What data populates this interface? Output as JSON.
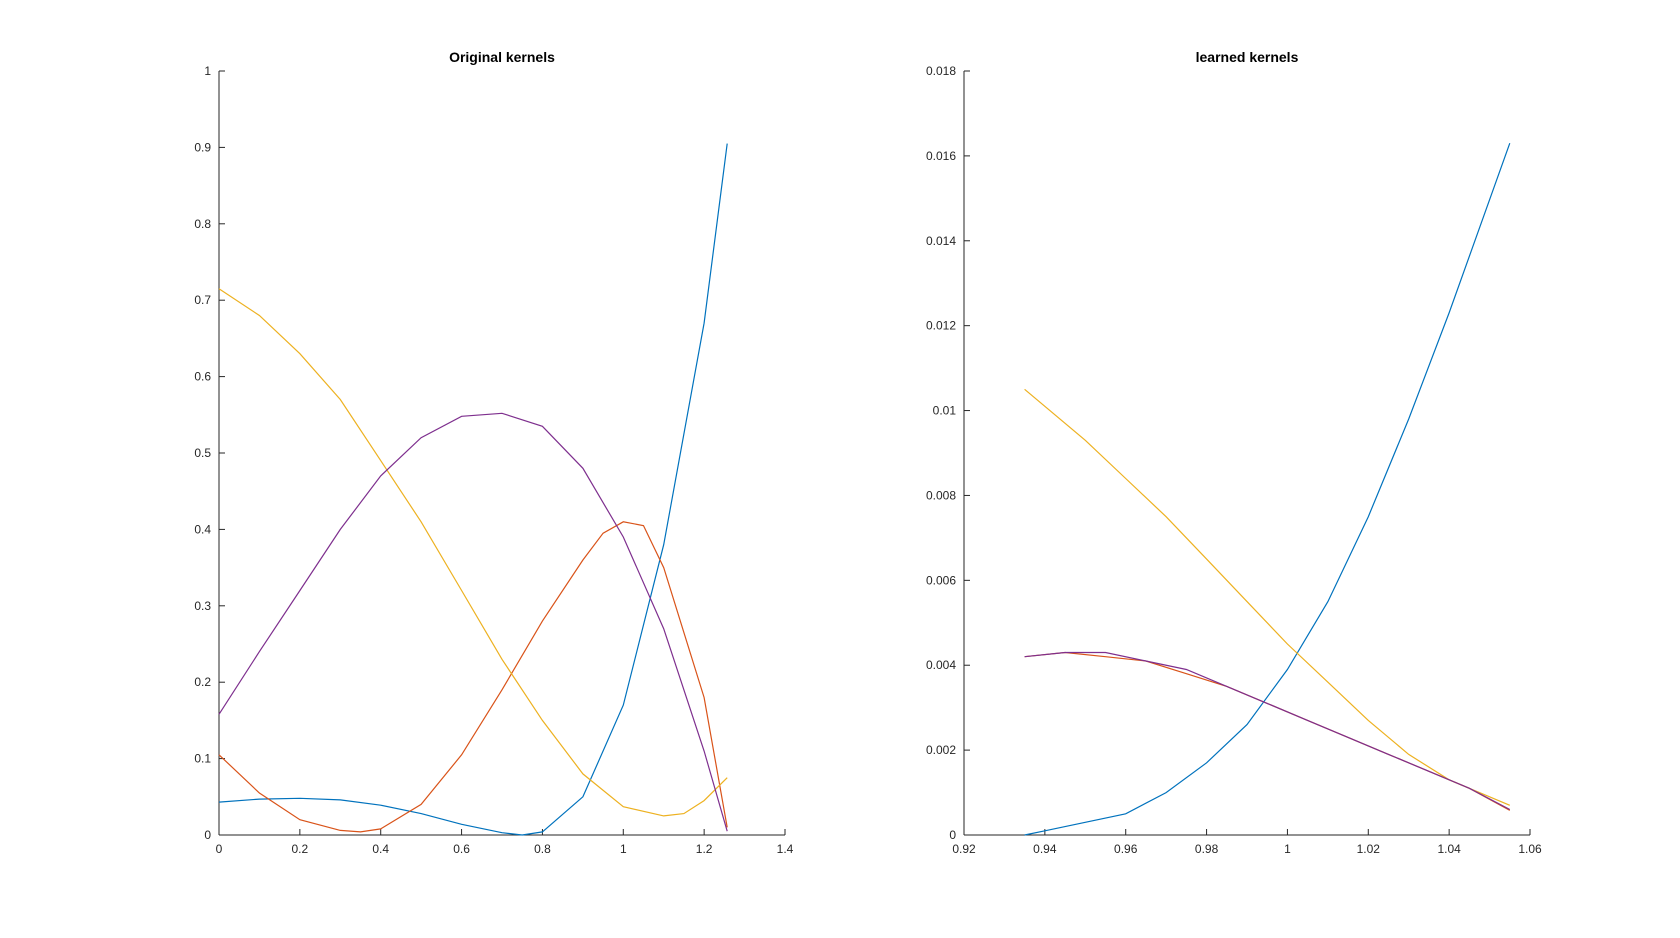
{
  "chart_data": [
    {
      "type": "line",
      "title": "Original kernels",
      "xlabel": "",
      "ylabel": "",
      "xlim": [
        0,
        1.4
      ],
      "ylim": [
        0,
        1
      ],
      "xticks": [
        "0",
        "0.2",
        "0.4",
        "0.6",
        "0.8",
        "1",
        "1.2",
        "1.4"
      ],
      "yticks": [
        "0",
        "0.1",
        "0.2",
        "0.3",
        "0.4",
        "0.5",
        "0.6",
        "0.7",
        "0.8",
        "0.9",
        "1"
      ],
      "grid": false,
      "series": [
        {
          "color": "#0072BD",
          "x": [
            0,
            0.1,
            0.2,
            0.3,
            0.4,
            0.5,
            0.6,
            0.7,
            0.75,
            0.8,
            0.9,
            1.0,
            1.1,
            1.2,
            1.257
          ],
          "y": [
            0.043,
            0.047,
            0.048,
            0.046,
            0.039,
            0.028,
            0.014,
            0.003,
            0.0,
            0.004,
            0.05,
            0.17,
            0.38,
            0.67,
            0.905
          ]
        },
        {
          "color": "#D95319",
          "x": [
            0,
            0.1,
            0.2,
            0.3,
            0.35,
            0.4,
            0.5,
            0.6,
            0.7,
            0.8,
            0.9,
            0.95,
            1.0,
            1.05,
            1.1,
            1.2,
            1.257
          ],
          "y": [
            0.105,
            0.055,
            0.02,
            0.006,
            0.004,
            0.008,
            0.04,
            0.105,
            0.19,
            0.28,
            0.36,
            0.395,
            0.41,
            0.405,
            0.35,
            0.18,
            0.01
          ]
        },
        {
          "color": "#EDB120",
          "x": [
            0,
            0.1,
            0.2,
            0.3,
            0.4,
            0.5,
            0.6,
            0.7,
            0.8,
            0.9,
            1.0,
            1.1,
            1.15,
            1.2,
            1.257
          ],
          "y": [
            0.715,
            0.68,
            0.63,
            0.57,
            0.49,
            0.41,
            0.32,
            0.23,
            0.15,
            0.08,
            0.037,
            0.025,
            0.028,
            0.045,
            0.075
          ]
        },
        {
          "color": "#7E2F8E",
          "x": [
            0,
            0.1,
            0.2,
            0.3,
            0.4,
            0.5,
            0.6,
            0.7,
            0.8,
            0.9,
            1.0,
            1.1,
            1.2,
            1.257
          ],
          "y": [
            0.158,
            0.24,
            0.32,
            0.4,
            0.47,
            0.52,
            0.548,
            0.552,
            0.535,
            0.48,
            0.39,
            0.27,
            0.11,
            0.005
          ]
        }
      ]
    },
    {
      "type": "line",
      "title": "learned kernels",
      "xlabel": "",
      "ylabel": "",
      "xlim": [
        0.92,
        1.06
      ],
      "ylim": [
        0,
        0.018
      ],
      "xticks": [
        "0.92",
        "0.94",
        "0.96",
        "0.98",
        "1",
        "1.02",
        "1.04",
        "1.06"
      ],
      "yticks": [
        "0",
        "0.002",
        "0.004",
        "0.006",
        "0.008",
        "0.01",
        "0.012",
        "0.014",
        "0.016",
        "0.018"
      ],
      "grid": false,
      "series": [
        {
          "color": "#0072BD",
          "x": [
            0.935,
            0.94,
            0.95,
            0.96,
            0.97,
            0.98,
            0.99,
            1.0,
            1.01,
            1.02,
            1.03,
            1.04,
            1.055
          ],
          "y": [
            0.0,
            0.0001,
            0.0003,
            0.0005,
            0.001,
            0.0017,
            0.0026,
            0.0039,
            0.0055,
            0.0075,
            0.0098,
            0.0123,
            0.0163
          ]
        },
        {
          "color": "#D95319",
          "x": [
            0.935,
            0.945,
            0.955,
            0.965,
            0.975,
            0.985,
            0.995,
            1.005,
            1.015,
            1.025,
            1.035,
            1.045,
            1.055
          ],
          "y": [
            0.0042,
            0.0043,
            0.0042,
            0.0041,
            0.0038,
            0.0035,
            0.0031,
            0.0027,
            0.0023,
            0.0019,
            0.0015,
            0.0011,
            0.00058
          ]
        },
        {
          "color": "#EDB120",
          "x": [
            0.935,
            0.95,
            0.96,
            0.97,
            0.98,
            0.99,
            1.0,
            1.01,
            1.02,
            1.03,
            1.04,
            1.055
          ],
          "y": [
            0.0105,
            0.0093,
            0.0084,
            0.0075,
            0.0065,
            0.0055,
            0.0045,
            0.0036,
            0.0027,
            0.0019,
            0.0013,
            0.0007
          ]
        },
        {
          "color": "#7E2F8E",
          "x": [
            0.935,
            0.945,
            0.955,
            0.965,
            0.975,
            0.985,
            0.995,
            1.005,
            1.015,
            1.025,
            1.035,
            1.045,
            1.055
          ],
          "y": [
            0.0042,
            0.0043,
            0.0043,
            0.0041,
            0.0039,
            0.0035,
            0.0031,
            0.0027,
            0.0023,
            0.0019,
            0.0015,
            0.0011,
            0.0006
          ]
        }
      ]
    }
  ]
}
